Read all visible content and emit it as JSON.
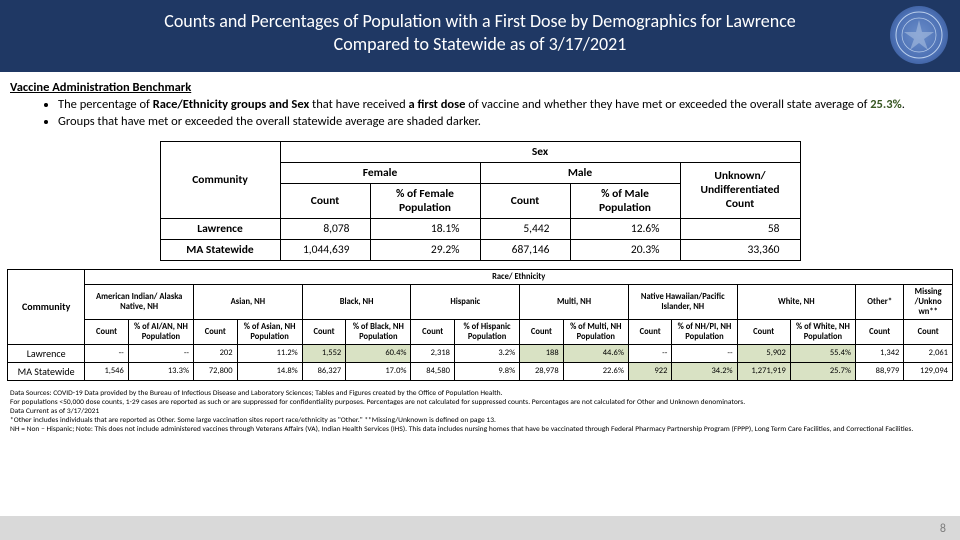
{
  "header": {
    "title_line1": "Counts and Percentages of Population with a First Dose by Demographics for Lawrence",
    "title_line2": "Compared to Statewide as of 3/17/2021"
  },
  "benchmark": {
    "heading": "Vaccine Administration Benchmark",
    "bullet1_a": "The percentage of ",
    "bullet1_b": "Race/Ethnicity groups and Sex",
    "bullet1_c": " that have received ",
    "bullet1_d": "a first dose",
    "bullet1_e": " of vaccine and whether they have met or exceeded the overall state average of ",
    "bullet1_pct": "25.3%",
    "bullet1_f": ".",
    "bullet2": "Groups that have met or exceeded the overall statewide average are shaded darker."
  },
  "sex_table": {
    "community_hdr": "Community",
    "sex_hdr": "Sex",
    "female_hdr": "Female",
    "male_hdr": "Male",
    "unknown_hdr": "Unknown/ Undifferentiated Count",
    "count_hdr": "Count",
    "pct_female_hdr": "% of Female Population",
    "pct_male_hdr": "% of Male Population",
    "rows": [
      {
        "label": "Lawrence",
        "f_count": "8,078",
        "f_pct": "18.1%",
        "m_count": "5,442",
        "m_pct": "12.6%",
        "u_count": "58"
      },
      {
        "label": "MA Statewide",
        "f_count": "1,044,639",
        "f_pct": "29.2%",
        "m_count": "687,146",
        "m_pct": "20.3%",
        "u_count": "33,360"
      }
    ]
  },
  "eth_table": {
    "community_hdr": "Community",
    "race_hdr": "Race/ Ethnicity",
    "groups": [
      {
        "name": "American Indian/ Alaska Native, NH",
        "pct_label": "% of AI/AN, NH Population"
      },
      {
        "name": "Asian, NH",
        "pct_label": "% of Asian, NH Population"
      },
      {
        "name": "Black, NH",
        "pct_label": "% of Black, NH Population"
      },
      {
        "name": "Hispanic",
        "pct_label": "% of Hispanic Population"
      },
      {
        "name": "Multi, NH",
        "pct_label": "% of Multi, NH Population"
      },
      {
        "name": "Native Hawaiian/Pacific Islander, NH",
        "pct_label": "% of NH/PI, NH Population"
      },
      {
        "name": "White, NH",
        "pct_label": "% of White, NH Population"
      }
    ],
    "count_hdr": "Count",
    "other_hdr": "Other*",
    "missing_hdr": "Missing /Unkno wn**",
    "rows": [
      {
        "label": "Lawrence",
        "cells": [
          {
            "c": "--",
            "p": "--"
          },
          {
            "c": "202",
            "p": "11.2%"
          },
          {
            "c": "1,552",
            "p": "60.4%",
            "shaded": true
          },
          {
            "c": "2,318",
            "p": "3.2%"
          },
          {
            "c": "188",
            "p": "44.6%",
            "shaded": true
          },
          {
            "c": "--",
            "p": "--"
          },
          {
            "c": "5,902",
            "p": "55.4%",
            "shaded": true
          }
        ],
        "other": "1,342",
        "missing": "2,061"
      },
      {
        "label": "MA Statewide",
        "cells": [
          {
            "c": "1,546",
            "p": "13.3%"
          },
          {
            "c": "72,800",
            "p": "14.8%"
          },
          {
            "c": "86,327",
            "p": "17.0%"
          },
          {
            "c": "84,580",
            "p": "9.8%"
          },
          {
            "c": "28,978",
            "p": "22.6%"
          },
          {
            "c": "922",
            "p": "34.2%",
            "shaded": true
          },
          {
            "c": "1,271,919",
            "p": "25.7%",
            "shaded": true
          }
        ],
        "other": "88,979",
        "missing": "129,094"
      }
    ]
  },
  "footnotes": {
    "l1": "Data Sources: COVID-19 Data provided by the Bureau of Infectious Disease and Laboratory Sciences; Tables and Figures created by the Office of Population Health.",
    "l2": "For populations <50,000 dose counts, 1-29 cases are reported as such or are suppressed for confidentiality purposes. Percentages are not calculated for suppressed counts. Percentages are not calculated for Other and Unknown denominators.",
    "l3": "Data Current as of 3/17/2021",
    "l4": "*Other includes individuals that are reported as Other. Some large vaccination sites report race/ethnicity as \"Other.\" **Missing/Unknown is defined on page 13.",
    "l5": "NH = Non – Hispanic; Note: This does not include administered vaccines through Veterans Affairs (VA), Indian Health Services (IHS). This data includes nursing homes that have be vaccinated through Federal Pharmacy Partnership Program (FPPP), Long Term Care Facilities, and Correctional Facilities."
  },
  "page_number": "8"
}
